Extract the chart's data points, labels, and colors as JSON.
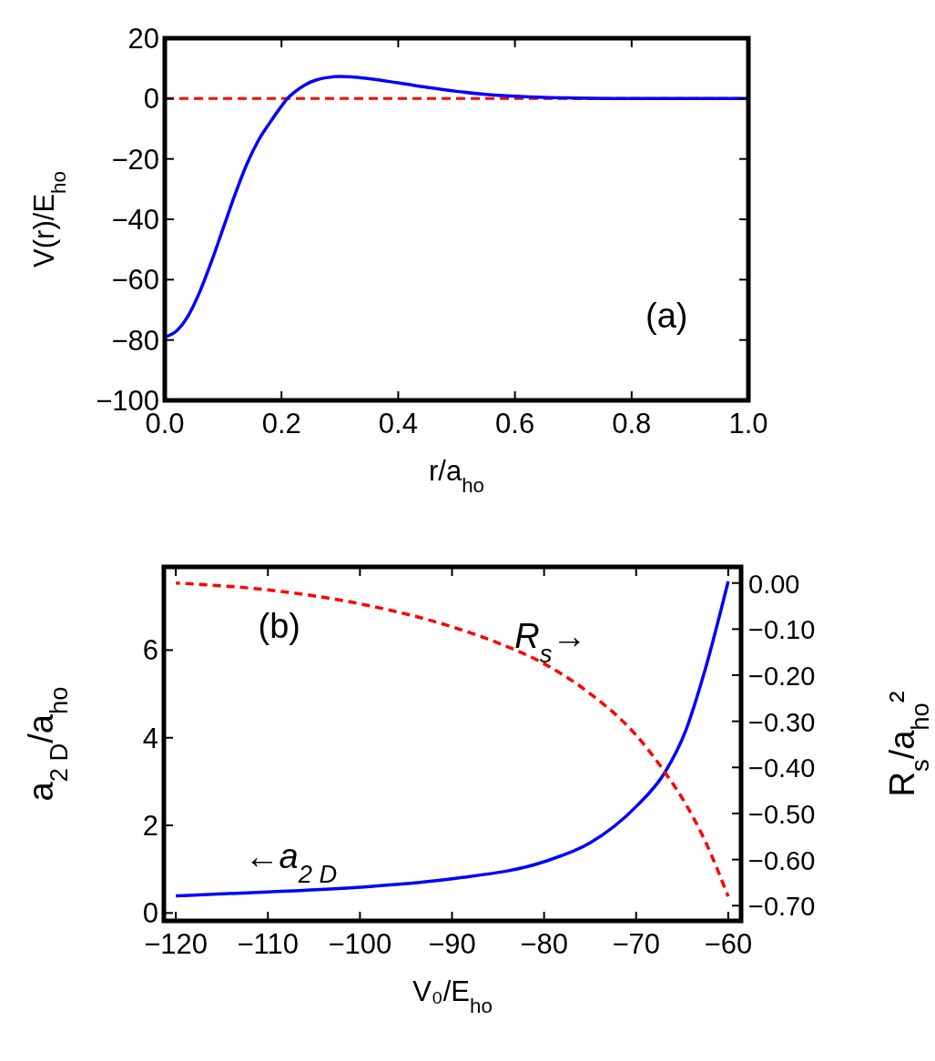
{
  "chart_data": [
    {
      "type": "line",
      "xlabel": "r/a$_{ho}$",
      "ylabel": "V(r)/E$_{ho}$",
      "xlim": [
        0,
        1
      ],
      "ylim": [
        -100,
        20
      ],
      "xticks": [
        {
          "value": 0,
          "label": "0.0"
        },
        {
          "value": 0.2,
          "label": "0.2"
        },
        {
          "value": 0.4,
          "label": "0.4"
        },
        {
          "value": 0.6,
          "label": "0.6"
        },
        {
          "value": 0.8,
          "label": "0.8"
        },
        {
          "value": 1,
          "label": "1.0"
        }
      ],
      "yticks": [
        {
          "value": -100,
          "label": "−100"
        },
        {
          "value": -80,
          "label": "−80"
        },
        {
          "value": -60,
          "label": "−60"
        },
        {
          "value": -40,
          "label": "−40"
        },
        {
          "value": -20,
          "label": "−20"
        },
        0,
        20
      ],
      "grid": false,
      "annotations": [
        "(a)"
      ],
      "ref_lines": [
        {
          "axis": "y",
          "value": 0,
          "color": "#ff0000",
          "line_style": "dashed"
        }
      ],
      "series": [
        {
          "color": "#0000ff",
          "line_style": "solid",
          "x": [
            0,
            0.02,
            0.04,
            0.06,
            0.08,
            0.1,
            0.12,
            0.14,
            0.16,
            0.18,
            0.2,
            0.21,
            0.22,
            0.24,
            0.26,
            0.28,
            0.3,
            0.32,
            0.35,
            0.4,
            0.45,
            0.5,
            0.55,
            0.6,
            0.65,
            0.7,
            0.8,
            0.9,
            1
          ],
          "values": [
            -79,
            -77,
            -72,
            -64,
            -54,
            -43,
            -32,
            -22,
            -14,
            -8,
            -2.5,
            0,
            1.8,
            4.5,
            6.2,
            7,
            7.3,
            7.2,
            6.6,
            5.2,
            3.7,
            2.4,
            1.4,
            0.8,
            0.4,
            0.2,
            0,
            0,
            0
          ]
        }
      ]
    },
    {
      "type": "line",
      "xlabel": "V₀/E$_{ho}$",
      "ylabel": "a$_{2 D}$/a$_{ho}$",
      "y2label": "R$_{s}$/a$_{ho}$²",
      "xlim": [
        -121.3,
        -58.6
      ],
      "ylim": [
        -0.18,
        7.9
      ],
      "y2lim": [
        -0.733,
        0.035
      ],
      "xticks": [
        {
          "value": -120,
          "label": "−120"
        },
        {
          "value": -110,
          "label": "−110"
        },
        {
          "value": -100,
          "label": "−100"
        },
        {
          "value": -90,
          "label": "−90"
        },
        {
          "value": -80,
          "label": "−80"
        },
        {
          "value": -70,
          "label": "−70"
        },
        {
          "value": -60,
          "label": "−60"
        }
      ],
      "yticks": [
        0,
        2,
        4,
        6
      ],
      "y2ticks": [
        {
          "value": 0,
          "label": "0.00"
        },
        {
          "value": -0.1,
          "label": "−0.10"
        },
        {
          "value": -0.2,
          "label": "−0.20"
        },
        {
          "value": -0.3,
          "label": "−0.30"
        },
        {
          "value": -0.4,
          "label": "−0.40"
        },
        {
          "value": -0.5,
          "label": "−0.50"
        },
        {
          "value": -0.6,
          "label": "−0.60"
        },
        {
          "value": -0.7,
          "label": "−0.70"
        }
      ],
      "grid": false,
      "annotations": [
        "(b)",
        "R$_{s}$→",
        "←a$_{2 D}$"
      ],
      "series": [
        {
          "color": "#0000ff",
          "line_style": "solid",
          "x": [
            -120,
            -110,
            -100,
            -90,
            -80,
            -75,
            -70,
            -66.9,
            -64.6,
            -62.5,
            -60
          ],
          "values": [
            0.39,
            0.48,
            0.59,
            0.78,
            1.17,
            1.6,
            2.43,
            3.2,
            4.17,
            5.56,
            7.57
          ]
        },
        {
          "color": "#ff0000",
          "line_style": "dashed",
          "axis": "y2",
          "x": [
            -120,
            -110,
            -100,
            -90,
            -85,
            -80,
            -75,
            -70,
            -66.9,
            -64.6,
            -62.5,
            -60
          ],
          "values": [
            0,
            -0.015,
            -0.045,
            -0.095,
            -0.13,
            -0.175,
            -0.24,
            -0.33,
            -0.41,
            -0.48,
            -0.56,
            -0.68
          ]
        }
      ]
    }
  ]
}
